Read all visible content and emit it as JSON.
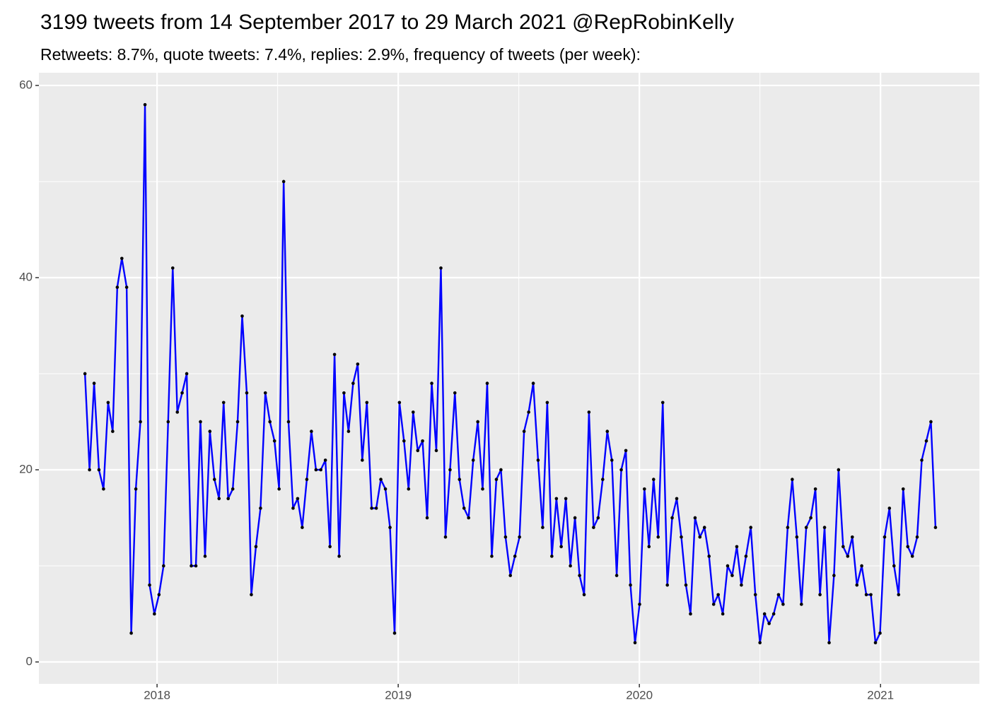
{
  "chart_data": {
    "type": "line",
    "title": "3199 tweets from 14 September 2017 to 29 March 2021 @RepRobinKelly",
    "subtitle": "Retweets: 8.7%, quote tweets: 7.4%, replies: 2.9%, frequency of tweets (per week):",
    "color": "#0000ff",
    "point_color": "#000000",
    "grid": true,
    "x": [
      2017.701,
      2017.72,
      2017.739,
      2017.759,
      2017.778,
      2017.797,
      2017.816,
      2017.835,
      2017.854,
      2017.874,
      2017.893,
      2017.912,
      2017.931,
      2017.95,
      2017.969,
      2017.989,
      2018.008,
      2018.027,
      2018.046,
      2018.065,
      2018.084,
      2018.104,
      2018.123,
      2018.142,
      2018.161,
      2018.18,
      2018.199,
      2018.219,
      2018.238,
      2018.257,
      2018.276,
      2018.295,
      2018.314,
      2018.334,
      2018.353,
      2018.372,
      2018.391,
      2018.41,
      2018.429,
      2018.449,
      2018.468,
      2018.487,
      2018.506,
      2018.525,
      2018.545,
      2018.564,
      2018.583,
      2018.602,
      2018.621,
      2018.64,
      2018.659,
      2018.679,
      2018.698,
      2018.717,
      2018.736,
      2018.755,
      2018.775,
      2018.794,
      2018.813,
      2018.832,
      2018.851,
      2018.87,
      2018.89,
      2018.909,
      2018.928,
      2018.947,
      2018.966,
      2018.985,
      2019.005,
      2019.024,
      2019.043,
      2019.062,
      2019.081,
      2019.101,
      2019.12,
      2019.139,
      2019.158,
      2019.177,
      2019.196,
      2019.215,
      2019.235,
      2019.254,
      2019.273,
      2019.292,
      2019.311,
      2019.33,
      2019.35,
      2019.369,
      2019.388,
      2019.407,
      2019.426,
      2019.445,
      2019.465,
      2019.484,
      2019.503,
      2019.522,
      2019.541,
      2019.56,
      2019.58,
      2019.599,
      2019.618,
      2019.637,
      2019.656,
      2019.676,
      2019.695,
      2019.714,
      2019.733,
      2019.752,
      2019.771,
      2019.791,
      2019.81,
      2019.829,
      2019.848,
      2019.867,
      2019.886,
      2019.906,
      2019.925,
      2019.944,
      2019.963,
      2019.982,
      2020.001,
      2020.021,
      2020.04,
      2020.059,
      2020.078,
      2020.097,
      2020.116,
      2020.136,
      2020.155,
      2020.174,
      2020.193,
      2020.212,
      2020.231,
      2020.251,
      2020.27,
      2020.289,
      2020.308,
      2020.327,
      2020.346,
      2020.366,
      2020.385,
      2020.404,
      2020.423,
      2020.442,
      2020.462,
      2020.481,
      2020.5,
      2020.519,
      2020.538,
      2020.557,
      2020.577,
      2020.596,
      2020.615,
      2020.634,
      2020.653,
      2020.672,
      2020.692,
      2020.711,
      2020.73,
      2020.749,
      2020.768,
      2020.787,
      2020.807,
      2020.826,
      2020.845,
      2020.864,
      2020.883,
      2020.902,
      2020.922,
      2020.941,
      2020.96,
      2020.979,
      2020.998,
      2021.017,
      2021.037,
      2021.056,
      2021.075,
      2021.094,
      2021.113,
      2021.132,
      2021.152,
      2021.171,
      2021.19,
      2021.209,
      2021.228
    ],
    "values": [
      30,
      20,
      29,
      20,
      18,
      27,
      24,
      39,
      42,
      39,
      3,
      18,
      25,
      58,
      8,
      5,
      7,
      10,
      25,
      41,
      26,
      28,
      30,
      10,
      10,
      25,
      11,
      24,
      19,
      17,
      27,
      17,
      18,
      25,
      36,
      28,
      7,
      12,
      16,
      28,
      25,
      23,
      18,
      50,
      25,
      16,
      17,
      14,
      19,
      24,
      20,
      20,
      21,
      12,
      32,
      11,
      28,
      24,
      29,
      31,
      21,
      27,
      16,
      16,
      19,
      18,
      14,
      3,
      27,
      23,
      18,
      26,
      22,
      23,
      15,
      29,
      22,
      41,
      13,
      20,
      28,
      19,
      16,
      15,
      21,
      25,
      18,
      29,
      11,
      19,
      20,
      13,
      9,
      11,
      13,
      24,
      26,
      29,
      21,
      14,
      27,
      11,
      17,
      12,
      17,
      10,
      15,
      9,
      7,
      26,
      14,
      15,
      19,
      24,
      21,
      9,
      20,
      22,
      8,
      2,
      6,
      18,
      12,
      19,
      13,
      27,
      8,
      15,
      17,
      13,
      8,
      5,
      15,
      13,
      14,
      11,
      6,
      7,
      5,
      10,
      9,
      12,
      8,
      11,
      14,
      7,
      2,
      5,
      4,
      5,
      7,
      6,
      14,
      19,
      13,
      6,
      14,
      15,
      18,
      7,
      14,
      2,
      9,
      20,
      12,
      11,
      13,
      8,
      10,
      7,
      7,
      2,
      3,
      13,
      16,
      10,
      7,
      18,
      12,
      11,
      13,
      21,
      23,
      25,
      14
    ],
    "xlim": [
      2017.51,
      2021.41
    ],
    "xticks": [
      2018,
      2019,
      2020,
      2021
    ],
    "ylim": [
      -2.28,
      61.32
    ],
    "yticks": [
      0,
      20,
      40,
      60
    ]
  }
}
